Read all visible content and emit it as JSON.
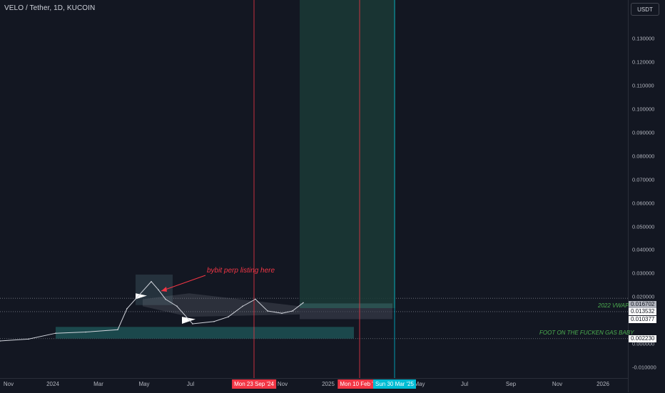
{
  "header": {
    "symbol_title": "VELO / Tether, 1D, KUCOIN"
  },
  "price_axis": {
    "currency": "USDT",
    "ticks": [
      "0.130000",
      "0.120000",
      "0.110000",
      "0.100000",
      "0.090000",
      "0.080000",
      "0.070000",
      "0.060000",
      "0.050000",
      "0.040000",
      "0.030000",
      "0.020000",
      "0.000000",
      "-0.010000"
    ]
  },
  "time_axis": {
    "labels": [
      "Nov",
      "2024",
      "Mar",
      "May",
      "Jul",
      "Nov",
      "2025",
      "May",
      "Jul",
      "Sep",
      "Nov",
      "2026"
    ]
  },
  "vertical_lines": [
    {
      "label": "Mon 23 Sep '24",
      "color": "#f23645"
    },
    {
      "label": "Mon 10 Feb '25",
      "color": "#f23645"
    },
    {
      "label": "Sun 30 Mar '25",
      "color": "#00bcd4"
    }
  ],
  "price_tags": [
    {
      "value": "0.016702",
      "bg": "#b2b5be",
      "fg": "#131722"
    },
    {
      "value": "0.013532",
      "bg": "#ffffff",
      "fg": "#131722"
    },
    {
      "value": "0.010377",
      "bg": "#ffffff",
      "fg": "#131722"
    },
    {
      "value": "0.002230",
      "bg": "#ffffff",
      "fg": "#131722"
    }
  ],
  "annotations": {
    "bybit": {
      "text": "bybit perp listing here",
      "color": "#f23645"
    },
    "vwap": {
      "text": "2022 VWAP",
      "color": "#4caf50"
    },
    "foot": {
      "text": "FOOT ON THE FUCKEN GAS BABY",
      "color": "#4caf50"
    }
  },
  "chart_data": {
    "type": "line",
    "title": "VELO / Tether, 1D, KUCOIN",
    "ylim": [
      -0.0135,
      0.1375
    ],
    "x": [
      "Oct 2023",
      "Dec 2023",
      "Jan 2024",
      "Feb 2024",
      "Mar 2024",
      "Apr 2024",
      "Apr 2024",
      "May 2024",
      "May 2024",
      "Jun 2024",
      "Jul 2024",
      "Jul 2024",
      "Aug 2024",
      "Sep 2024",
      "Sep 2024",
      "Oct 2024",
      "Nov 2024",
      "Nov 2024",
      "Dec 2024"
    ],
    "series": [
      {
        "values": [
          0.0012,
          0.002,
          0.0045,
          0.005,
          0.006,
          0.015,
          0.0265,
          0.023,
          0.019,
          0.016,
          0.0085,
          0.0095,
          0.0115,
          0.016,
          0.019,
          0.014,
          0.013,
          0.014,
          0.0175
        ]
      }
    ]
  }
}
